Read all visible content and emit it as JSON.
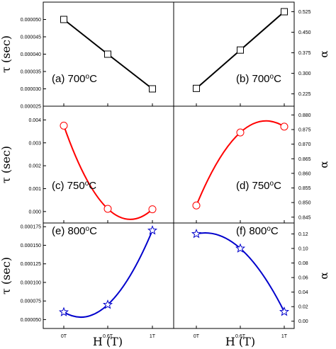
{
  "chart_data": {
    "type": "line",
    "rows": [
      {
        "left_ylabel": "τ (sec)",
        "right_ylabel": "α"
      },
      {
        "left_ylabel": "τ (sec)",
        "right_ylabel": "α"
      },
      {
        "left_ylabel": "τ (sec)",
        "right_ylabel": "α"
      }
    ],
    "xlabels": [
      "H (T)",
      "H (T)"
    ],
    "panels": [
      {
        "label": "(a)  700",
        "temp_sup": "o",
        "temp_unit": "C",
        "quantity": "tau",
        "ylim": [
          2.5e-05,
          5.5e-05
        ],
        "yticks": [
          2.5e-05,
          3e-05,
          3.5e-05,
          4e-05,
          4.5e-05,
          5e-05
        ],
        "yticklabels": [
          "0.000025",
          "0.000030",
          "0.000035",
          "0.000040",
          "0.000045",
          "0.000050"
        ],
        "categories": [
          "0T",
          "0.6T",
          "1T"
        ],
        "values": [
          5e-05,
          4e-05,
          3e-05
        ],
        "marker": "square",
        "color": "#000000",
        "line": "straight"
      },
      {
        "label": "(b)  700",
        "temp_sup": "o",
        "temp_unit": "C",
        "quantity": "alpha",
        "ylim": [
          0.18,
          0.56
        ],
        "yticks": [
          0.225,
          0.3,
          0.375,
          0.45,
          0.525
        ],
        "yticklabels": [
          "0.225",
          "0.300",
          "0.375",
          "0.450",
          "0.525"
        ],
        "categories": [
          "0T",
          "0.6T",
          "1T"
        ],
        "values": [
          0.245,
          0.385,
          0.525
        ],
        "marker": "square",
        "color": "#000000",
        "line": "straight"
      },
      {
        "label": "(c)  750",
        "temp_sup": "o",
        "temp_unit": "C",
        "quantity": "tau",
        "ylim": [
          -0.0005,
          0.0046
        ],
        "yticks": [
          0.0,
          0.001,
          0.002,
          0.003,
          0.004
        ],
        "yticklabels": [
          "0.000",
          "0.001",
          "0.002",
          "0.003",
          "0.004"
        ],
        "categories": [
          "0T",
          "0.6T",
          "1T"
        ],
        "values": [
          0.00375,
          0.00012,
          0.0001
        ],
        "marker": "circle",
        "color": "#ff0000",
        "line": "smooth"
      },
      {
        "label": "(d)  750",
        "temp_sup": "o",
        "temp_unit": "C",
        "quantity": "alpha",
        "ylim": [
          0.843,
          0.883
        ],
        "yticks": [
          0.845,
          0.85,
          0.855,
          0.86,
          0.865,
          0.87,
          0.875,
          0.88
        ],
        "yticklabels": [
          "0.845",
          "0.850",
          "0.855",
          "0.860",
          "0.865",
          "0.870",
          "0.875",
          "0.880"
        ],
        "categories": [
          "0T",
          "0.6T",
          "1T"
        ],
        "values": [
          0.849,
          0.874,
          0.876
        ],
        "marker": "circle",
        "color": "#ff0000",
        "line": "smooth"
      },
      {
        "label": "(e)  800",
        "temp_sup": "o",
        "temp_unit": "C",
        "quantity": "tau",
        "ylim": [
          3.8e-05,
          0.00018
        ],
        "yticks": [
          5e-05,
          7.5e-05,
          0.0001,
          0.000125,
          0.00015,
          0.000175
        ],
        "yticklabels": [
          "0.000050",
          "0.000075",
          "0.000100",
          "0.000125",
          "0.000150",
          "0.000175"
        ],
        "categories": [
          "0T",
          "0.6T",
          "1T"
        ],
        "values": [
          6e-05,
          7e-05,
          0.00017
        ],
        "marker": "star",
        "color": "#0000cc",
        "line": "smooth"
      },
      {
        "label": "(f)  800",
        "temp_sup": "o",
        "temp_unit": "C",
        "quantity": "alpha",
        "ylim": [
          -0.01,
          0.135
        ],
        "yticks": [
          0.0,
          0.02,
          0.04,
          0.06,
          0.08,
          0.1,
          0.12
        ],
        "yticklabels": [
          "0.00",
          "0.02",
          "0.04",
          "0.06",
          "0.08",
          "0.10",
          "0.12"
        ],
        "categories": [
          "0T",
          "0.6T",
          "1T"
        ],
        "values": [
          0.12,
          0.1,
          0.013
        ],
        "marker": "star",
        "color": "#0000cc",
        "line": "smooth"
      }
    ]
  }
}
